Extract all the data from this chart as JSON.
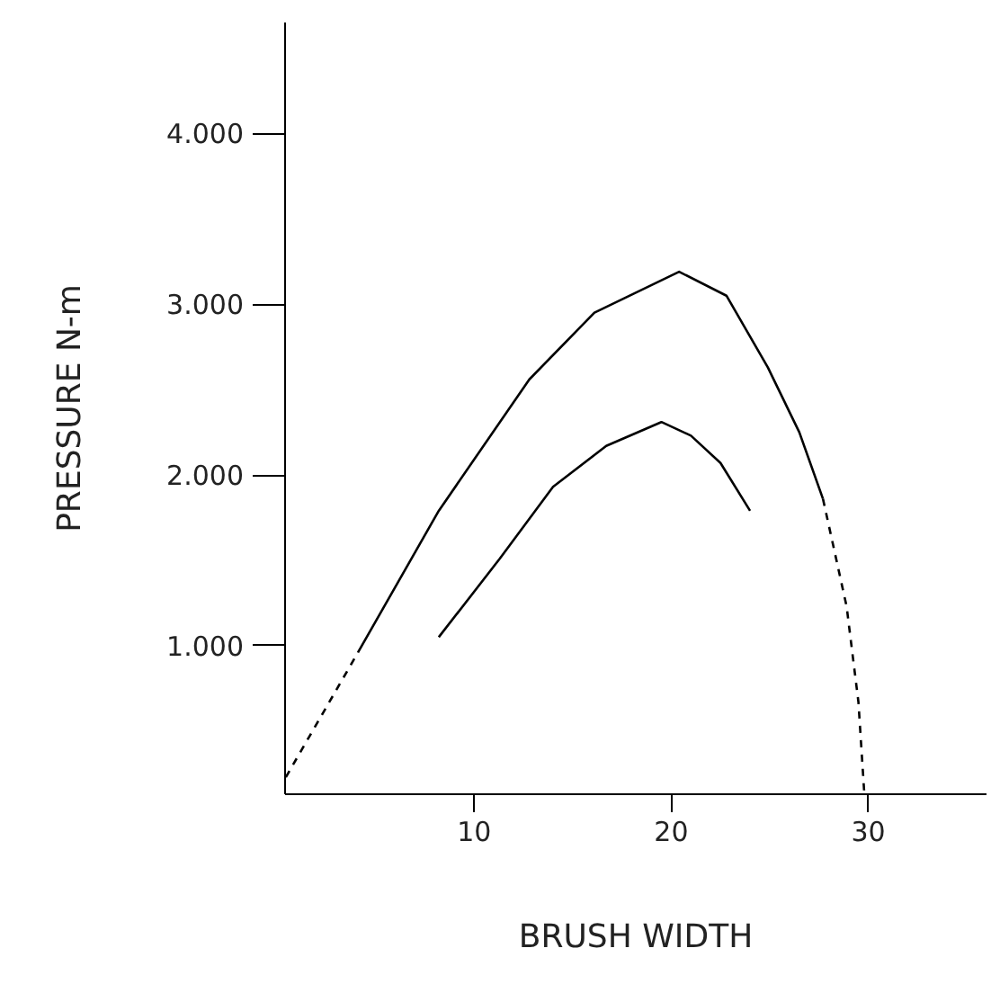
{
  "chart_data": {
    "type": "line",
    "xlabel": "BRUSH WIDTH",
    "ylabel": "PRESSURE N-m",
    "xlim": [
      0.4,
      36
    ],
    "ylim": [
      0.13,
      4.65
    ],
    "xticks": [
      10,
      20,
      30
    ],
    "yticks": [
      {
        "value": 1,
        "label": "1.000"
      },
      {
        "value": 2,
        "label": "2.000"
      },
      {
        "value": 3,
        "label": "3.000"
      },
      {
        "value": 4,
        "label": "4.000"
      }
    ],
    "grid": false,
    "marker": "none",
    "series": [
      {
        "color": "#000000",
        "line_style": "dashed",
        "x": [
          0.44,
          4.1
        ],
        "values": [
          0.23,
          0.96
        ]
      },
      {
        "color": "#000000",
        "line_style": "solid",
        "x": [
          4.1,
          8.2,
          12.8,
          16.1,
          20.4,
          22.8,
          24.9,
          26.5,
          27.7
        ],
        "values": [
          0.96,
          1.79,
          2.56,
          2.95,
          3.19,
          3.05,
          2.63,
          2.25,
          1.86
        ]
      },
      {
        "color": "#000000",
        "line_style": "dashed",
        "x": [
          27.7,
          28.9,
          29.5,
          29.8
        ],
        "values": [
          1.86,
          1.23,
          0.67,
          0.13
        ]
      },
      {
        "color": "#000000",
        "line_style": "solid",
        "x": [
          8.2,
          11.3,
          14.0,
          16.7,
          19.5,
          21.0,
          22.5,
          24.0
        ],
        "values": [
          1.05,
          1.51,
          1.93,
          2.17,
          2.31,
          2.23,
          2.07,
          1.79
        ]
      }
    ]
  }
}
